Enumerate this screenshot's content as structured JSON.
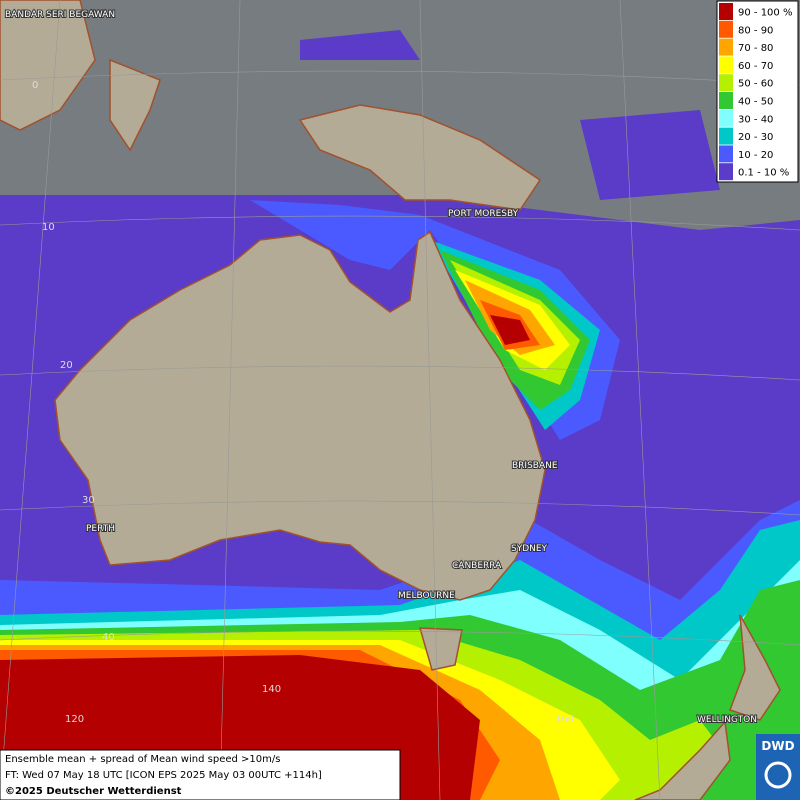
{
  "map": {
    "legend": [
      {
        "label": "90 - 100 %",
        "color": "#b40000"
      },
      {
        "label": "80 - 90",
        "color": "#ff5a00"
      },
      {
        "label": "70 - 80",
        "color": "#ffa500"
      },
      {
        "label": "60 - 70",
        "color": "#ffff00"
      },
      {
        "label": "50 - 60",
        "color": "#b4f000"
      },
      {
        "label": "40 - 50",
        "color": "#32c832"
      },
      {
        "label": "30 - 40",
        "color": "#80ffff"
      },
      {
        "label": "20 - 30",
        "color": "#00c8c8"
      },
      {
        "label": "10 - 20",
        "color": "#4b5aff"
      },
      {
        "label": "0.1 - 10 %",
        "color": "#5a3cc8"
      }
    ],
    "places": [
      "BANDAR SERI BEGAWAN",
      "PORT MORESBY",
      "BRISBANE",
      "PERTH",
      "SYDNEY",
      "CANBERRA",
      "MELBOURNE",
      "WELLINGTON"
    ],
    "grid_labels": [
      "0",
      "10",
      "20",
      "30",
      "40",
      "120",
      "140",
      "160"
    ],
    "footer": {
      "line1": "Ensemble mean + spread of Mean wind speed >10m/s",
      "line2": "FT: Wed 07 May 18 UTC [ICON EPS 2025 May 03 00UTC +114h]",
      "line3": "©2025 Deutscher Wetterdienst"
    },
    "logo": "DWD"
  }
}
